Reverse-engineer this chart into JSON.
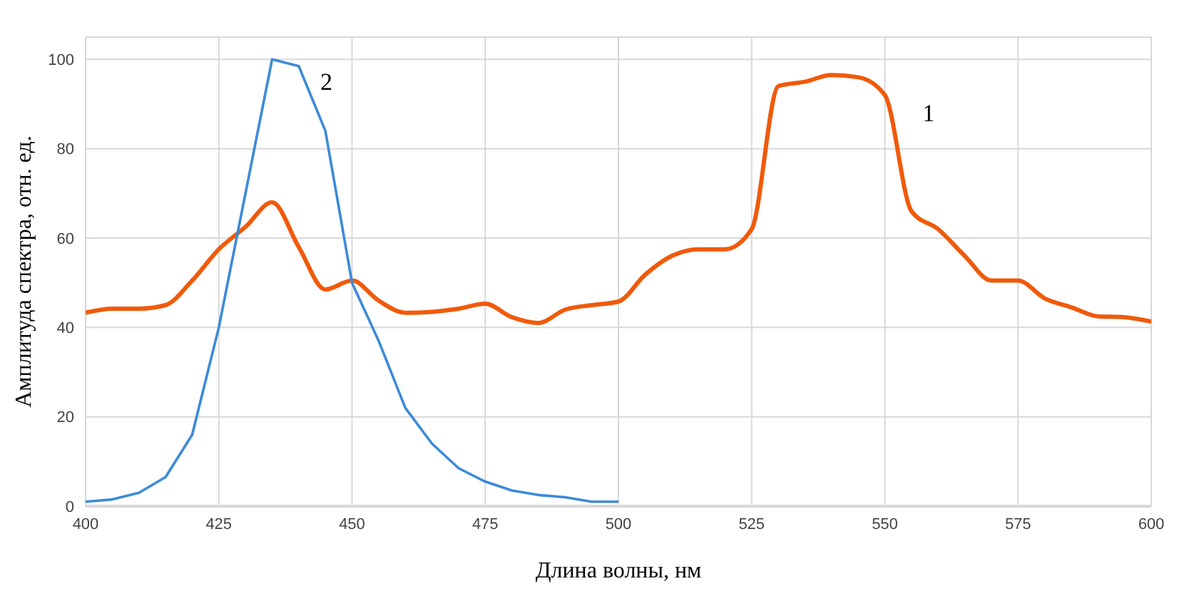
{
  "chart_data": {
    "type": "line",
    "xlabel": "Длина волны, нм",
    "ylabel": "Амплитуда спектра, отн. ед.",
    "x": [
      400,
      405,
      410,
      415,
      420,
      425,
      430,
      435,
      440,
      445,
      450,
      455,
      460,
      465,
      470,
      475,
      480,
      485,
      490,
      495,
      500,
      505,
      510,
      515,
      520,
      525,
      530,
      535,
      540,
      545,
      550,
      555,
      560,
      565,
      570,
      575,
      580,
      585,
      590,
      595,
      600
    ],
    "series": [
      {
        "name": "1",
        "color": "#f05a0a",
        "values": [
          43.3,
          44.2,
          44.2,
          45,
          50.5,
          57.5,
          62.5,
          68,
          58,
          48.5,
          50.5,
          46,
          43.3,
          43.5,
          44.2,
          45.3,
          42.3,
          41,
          44,
          45,
          45.8,
          51.8,
          56,
          57.5,
          57.5,
          62,
          94,
          95,
          96.5,
          96,
          92,
          66,
          62,
          56,
          50.5,
          50.5,
          46.5,
          44.5,
          42.5,
          42.3,
          41.3
        ]
      },
      {
        "name": "2",
        "color": "#3c8ad8",
        "x": [
          400,
          405,
          410,
          415,
          420,
          425,
          430,
          435,
          440,
          445,
          450,
          455,
          460,
          465,
          470,
          475,
          480,
          485,
          490,
          495,
          500
        ],
        "values": [
          1,
          1.5,
          3,
          6.5,
          16,
          40,
          70,
          100,
          98.5,
          84,
          50,
          37,
          22,
          14,
          8.5,
          5.5,
          3.5,
          2.5,
          2,
          1,
          1
        ]
      }
    ],
    "xlim": [
      400,
      600
    ],
    "xticks": [
      400,
      425,
      450,
      475,
      500,
      525,
      550,
      575,
      600
    ],
    "ylim": [
      0,
      105
    ],
    "yticks": [
      0,
      20,
      40,
      60,
      80,
      100
    ],
    "grid": true
  }
}
